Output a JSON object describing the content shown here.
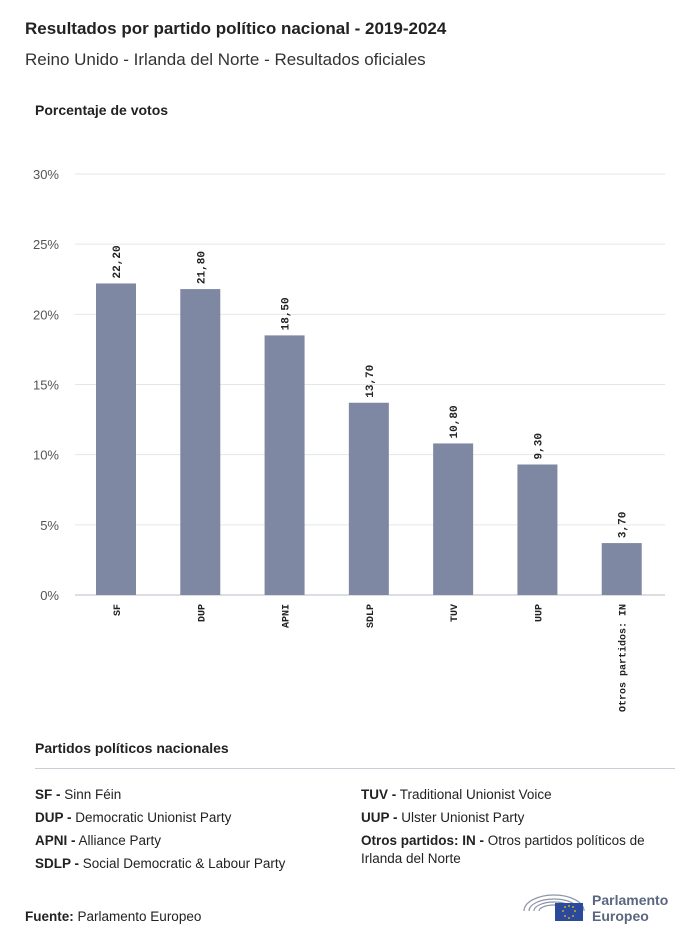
{
  "header": {
    "title": "Resultados por partido político nacional - 2019-2024",
    "subtitle": "Reino Unido - Irlanda del Norte - Resultados oficiales"
  },
  "chart_data": {
    "type": "bar",
    "ylabel": "Porcentaje de votos",
    "categories": [
      "SF",
      "DUP",
      "APNI",
      "SDLP",
      "TUV",
      "UUP",
      "Otros partidos: IN"
    ],
    "values": [
      22.2,
      21.8,
      18.5,
      13.7,
      10.8,
      9.3,
      3.7
    ],
    "value_labels": [
      "22,20",
      "21,80",
      "18,50",
      "13,70",
      "10,80",
      "9,30",
      "3,70"
    ],
    "ylim": [
      0,
      30
    ],
    "yticks": [
      0,
      5,
      10,
      15,
      20,
      25,
      30
    ],
    "ytick_labels": [
      "0%",
      "5%",
      "10%",
      "15%",
      "20%",
      "25%",
      "30%"
    ],
    "grid": true,
    "bar_color": "#7f88a3"
  },
  "legend": {
    "title": "Partidos políticos nacionales",
    "col1": [
      {
        "abbr": "SF -",
        "name": "Sinn Féin"
      },
      {
        "abbr": "DUP -",
        "name": "Democratic Unionist Party"
      },
      {
        "abbr": "APNI -",
        "name": "Alliance Party"
      },
      {
        "abbr": "SDLP -",
        "name": "Social Democratic & Labour Party"
      }
    ],
    "col2": [
      {
        "abbr": "TUV -",
        "name": "Traditional Unionist Voice"
      },
      {
        "abbr": "UUP -",
        "name": "Ulster Unionist Party"
      },
      {
        "abbr": "Otros partidos: IN -",
        "name": "Otros partidos políticos de Irlanda del Norte"
      }
    ]
  },
  "footer": {
    "source_label": "Fuente:",
    "source_value": "Parlamento Europeo",
    "logo_line1": "Parlamento",
    "logo_line2": "Europeo"
  }
}
